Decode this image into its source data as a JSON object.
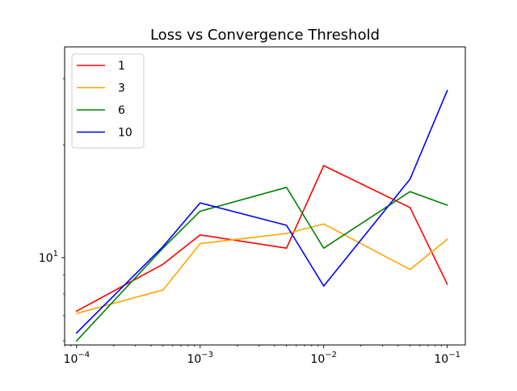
{
  "chart_data": {
    "type": "line",
    "title": "Loss vs Convergence Threshold",
    "xlabel": "",
    "ylabel": "",
    "x_scale": "log",
    "y_scale": "log",
    "x": [
      0.0001,
      0.0005,
      0.001,
      0.005,
      0.01,
      0.05,
      0.1
    ],
    "xlim": [
      8e-05,
      0.14
    ],
    "ylim": [
      5.85,
      36.5
    ],
    "x_ticks": [
      {
        "value": 0.0001,
        "base": "10",
        "exp": "−4"
      },
      {
        "value": 0.001,
        "base": "10",
        "exp": "−3"
      },
      {
        "value": 0.01,
        "base": "10",
        "exp": "−2"
      },
      {
        "value": 0.1,
        "base": "10",
        "exp": "−1"
      }
    ],
    "y_ticks": [
      {
        "value": 10,
        "base": "10",
        "exp": "1"
      }
    ],
    "grid": false,
    "legend_position": "upper-left",
    "series": [
      {
        "name": "1",
        "color": "#ff0000",
        "values": [
          7.2,
          9.6,
          11.5,
          10.6,
          17.6,
          13.6,
          8.5
        ]
      },
      {
        "name": "3",
        "color": "#ffa500",
        "values": [
          7.1,
          8.2,
          10.9,
          11.6,
          12.3,
          9.3,
          11.2
        ]
      },
      {
        "name": "6",
        "color": "#008000",
        "values": [
          6.0,
          10.6,
          13.3,
          15.4,
          10.6,
          15.0,
          13.8
        ]
      },
      {
        "name": "10",
        "color": "#0000ff",
        "values": [
          6.3,
          10.7,
          14.0,
          12.2,
          8.4,
          16.2,
          27.9
        ]
      }
    ]
  }
}
